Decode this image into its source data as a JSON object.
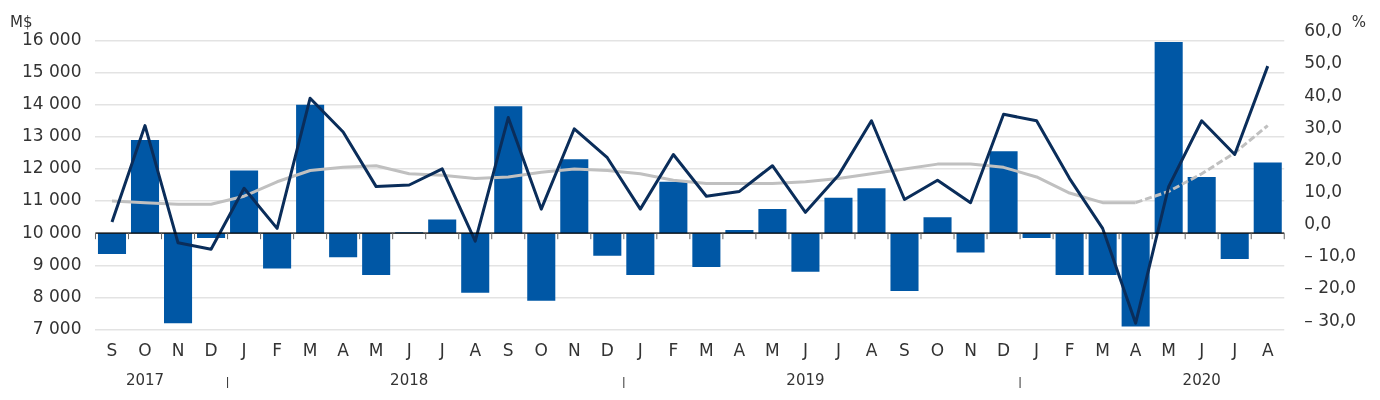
{
  "chart_data": {
    "type": "bar",
    "ylabel": "M$",
    "y2label": "%",
    "categories": [
      "S",
      "O",
      "N",
      "D",
      "J",
      "F",
      "M",
      "A",
      "M",
      "J",
      "J",
      "A",
      "S",
      "O",
      "N",
      "D",
      "J",
      "F",
      "M",
      "A",
      "M",
      "J",
      "J",
      "A",
      "S",
      "O",
      "N",
      "D",
      "J",
      "F",
      "M",
      "A",
      "M",
      "J",
      "J",
      "A"
    ],
    "series": [
      {
        "type": "bar",
        "color": "#0057a5",
        "axis": "y2",
        "values": [
          -6.5,
          29,
          -28,
          -1.5,
          19.5,
          -11,
          40,
          -7.5,
          -13,
          0.3,
          4.3,
          -18.5,
          39.5,
          -21,
          23,
          -7,
          -13,
          16,
          -10.5,
          1,
          7.5,
          -12,
          11,
          14,
          -18,
          5,
          -6,
          25.5,
          -1.5,
          -13,
          -13,
          -29,
          59.5,
          17.5,
          -8,
          22
        ]
      },
      {
        "type": "line",
        "color": "#0a2d5a",
        "values": [
          10350,
          13350,
          9700,
          9500,
          11400,
          10150,
          14200,
          13150,
          11450,
          11500,
          12000,
          9750,
          13600,
          10750,
          13250,
          12350,
          10750,
          12450,
          11150,
          11300,
          12100,
          10650,
          11800,
          13500,
          11050,
          11650,
          10950,
          13700,
          13500,
          11700,
          10150,
          7200,
          11450,
          13500,
          12450,
          15200
        ]
      },
      {
        "type": "line",
        "color": "#c0c0c0",
        "values": [
          11000,
          10950,
          10900,
          10900,
          11150,
          11600,
          11950,
          12050,
          12100,
          11850,
          11800,
          11700,
          11750,
          11900,
          12000,
          11950,
          11850,
          11650,
          11550,
          11550,
          11550,
          11600,
          11700,
          11850,
          12000,
          12150,
          12150,
          12050,
          11750,
          11250,
          10950,
          10950,
          null,
          null,
          null,
          null
        ]
      },
      {
        "type": "line",
        "color": "#c0c0c0",
        "line_style": "dashed",
        "values": [
          null,
          null,
          null,
          null,
          null,
          null,
          null,
          null,
          null,
          null,
          null,
          null,
          null,
          null,
          null,
          null,
          null,
          null,
          null,
          null,
          null,
          null,
          null,
          null,
          null,
          null,
          null,
          null,
          null,
          null,
          null,
          10950,
          11300,
          11850,
          12500,
          13350
        ]
      }
    ],
    "ylim": [
      7000,
      16000
    ],
    "yticks": [
      {
        "value": 7000,
        "label": "7 000"
      },
      {
        "value": 8000,
        "label": "8 000"
      },
      {
        "value": 9000,
        "label": "9 000"
      },
      {
        "value": 10000,
        "label": "10 000"
      },
      {
        "value": 11000,
        "label": "11 000"
      },
      {
        "value": 12000,
        "label": "12 000"
      },
      {
        "value": 13000,
        "label": "13 000"
      },
      {
        "value": 14000,
        "label": "14 000"
      },
      {
        "value": 15000,
        "label": "15 000"
      },
      {
        "value": 16000,
        "label": "16 000"
      }
    ],
    "y2lim": [
      -30,
      60
    ],
    "y2ticks": [
      {
        "value": -30,
        "label": "– 30,0"
      },
      {
        "value": -20,
        "label": "– 20,0"
      },
      {
        "value": -10,
        "label": "– 10,0"
      },
      {
        "value": 0,
        "label": "0,0"
      },
      {
        "value": 10,
        "label": "10,0"
      },
      {
        "value": 20,
        "label": "20,0"
      },
      {
        "value": 30,
        "label": "30,0"
      },
      {
        "value": 40,
        "label": "40,0"
      },
      {
        "value": 50,
        "label": "50,0"
      },
      {
        "value": 60,
        "label": "60,0"
      }
    ],
    "annotations": [
      "2017",
      "2018",
      "2019",
      "2020"
    ],
    "grid": "y",
    "legend": false,
    "marker": "none",
    "line_style": "solid"
  }
}
